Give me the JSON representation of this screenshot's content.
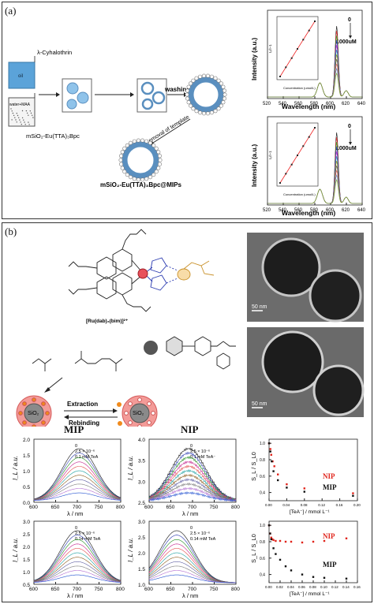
{
  "panel_a": {
    "label": "(a)",
    "schematic": {
      "reagent1": "λ-Cyhalothrin",
      "box1": "oil",
      "box2": "water+MAA",
      "reagent2": "mSiO₂-Eu(TTA)₃Bpc",
      "washing": "washing",
      "removal": "removal of template",
      "product": "mSiO₂-Eu(TTA)₃Bpc@MIPs"
    },
    "top_plot": {
      "ylabel": "Intensity (a.u.)",
      "xlabel": "Wavelength (nm)",
      "xticks": [
        "520",
        "540",
        "560",
        "580",
        "600",
        "620",
        "640"
      ],
      "label_top": "0",
      "label_bottom": "1000uM",
      "inset_xlabel": "Concentration (umol/L)",
      "inset_ylabel": "I₀/I−1"
    },
    "bottom_plot": {
      "ylabel": "Intensity (a.u.)",
      "xlabel": "Wavelength (nm)",
      "xticks": [
        "520",
        "540",
        "560",
        "580",
        "600",
        "620",
        "640"
      ],
      "label_top": "0",
      "label_bottom": "1000uM",
      "inset_xlabel": "Concentration (umol/L)",
      "inset_ylabel": "I₀/I−1"
    }
  },
  "panel_b": {
    "label": "(b)",
    "complex_label": "[Ru(dab)₂(bim)]²⁺",
    "scale_bar_1": "50 nm",
    "scale_bar_2": "50 nm",
    "extraction": "Extraction",
    "rebinding": "Rebinding",
    "sio2": "SiO₂",
    "mip_title": "MIP",
    "nip_title": "NIP",
    "ylabel": "I_L / a.u.",
    "xlabel": "λ / nm",
    "xticks": [
      "600",
      "650",
      "700",
      "750",
      "800"
    ],
    "mip1_legend": [
      "0",
      "2.5 × 10⁻⁶",
      "0.1 mM TeA"
    ],
    "nip1_legend": [
      "0",
      "2.5 × 10⁻⁶",
      "0.1 mM TeA⁻"
    ],
    "mip2_legend": [
      "0",
      "2.5 × 10⁻⁶",
      "0.14 mM TeA"
    ],
    "nip2_legend": [
      "0",
      "2.5 × 10⁻⁶",
      "0.14 mM TeA"
    ],
    "mip1_yticks": [
      "2.0",
      "1.5",
      "1.0",
      "0.5",
      "0.0"
    ],
    "nip1_yticks": [
      "4.0",
      "3.5",
      "3.0",
      "2.5"
    ],
    "mip2_yticks": [
      "3.0",
      "2.5",
      "2.0",
      "1.5",
      "1.0",
      "0.5"
    ],
    "nip2_yticks": [
      "3.0",
      "2.5",
      "2.0",
      "1.5",
      "1.0"
    ],
    "ratio_ylabel": "S_L / S_L0",
    "ratio_xlabel": "[TeA⁻] / mmol L⁻¹",
    "ratio1_xticks": [
      "0.00",
      "0.04",
      "0.08",
      "0.12",
      "0.16",
      "0.20"
    ],
    "ratio2_xticks": [
      "0.00",
      "0.02",
      "0.04",
      "0.06",
      "0.08",
      "0.10",
      "0.12",
      "0.14",
      "0.16"
    ],
    "ratio1_yticks": [
      "1.0",
      "0.8",
      "0.6",
      "0.4"
    ],
    "ratio2_yticks": [
      "1.0",
      "0.8",
      "0.6",
      "0.4"
    ],
    "nip_label": "NIP",
    "mip_label": "MIP",
    "colors": {
      "nip": "#e0241b",
      "mip": "#111111",
      "core": "#8a8a8a",
      "shell": "#f0928f",
      "dot": "#f08a1c",
      "sphere_blue": "#8fc3ea"
    }
  },
  "chart_data": [
    {
      "type": "scatter",
      "title": "",
      "xlabel": "[TeA⁻] / mmol L⁻¹",
      "ylabel": "S_L / S_L0",
      "xlim": [
        0,
        0.2
      ],
      "ylim": [
        0.3,
        1.05
      ],
      "series": [
        {
          "name": "NIP",
          "x": [
            0.0,
            0.003,
            0.005,
            0.008,
            0.012,
            0.02,
            0.04,
            0.08,
            0.19
          ],
          "y": [
            1.0,
            0.93,
            0.86,
            0.78,
            0.72,
            0.62,
            0.5,
            0.45,
            0.39
          ]
        },
        {
          "name": "MIP",
          "x": [
            0.0,
            0.003,
            0.006,
            0.01,
            0.02,
            0.04,
            0.08,
            0.19
          ],
          "y": [
            1.0,
            0.9,
            0.78,
            0.66,
            0.55,
            0.46,
            0.41,
            0.36
          ]
        }
      ]
    },
    {
      "type": "scatter",
      "title": "",
      "xlabel": "[TeA⁻] / mmol L⁻¹",
      "ylabel": "S_L / S_L0",
      "xlim": [
        0,
        0.16
      ],
      "ylim": [
        0.3,
        1.05
      ],
      "series": [
        {
          "name": "NIP",
          "x": [
            0.0,
            0.002,
            0.004,
            0.006,
            0.008,
            0.012,
            0.02,
            0.03,
            0.04,
            0.06,
            0.08,
            0.1,
            0.14
          ],
          "y": [
            1.0,
            0.9,
            0.85,
            0.83,
            0.82,
            0.81,
            0.81,
            0.8,
            0.8,
            0.79,
            0.8,
            0.81,
            0.84
          ]
        },
        {
          "name": "MIP",
          "x": [
            0.0,
            0.002,
            0.004,
            0.008,
            0.012,
            0.02,
            0.03,
            0.04,
            0.06,
            0.08,
            0.1,
            0.14
          ],
          "y": [
            1.0,
            0.9,
            0.83,
            0.72,
            0.65,
            0.58,
            0.5,
            0.45,
            0.4,
            0.37,
            0.36,
            0.35
          ]
        }
      ]
    }
  ]
}
